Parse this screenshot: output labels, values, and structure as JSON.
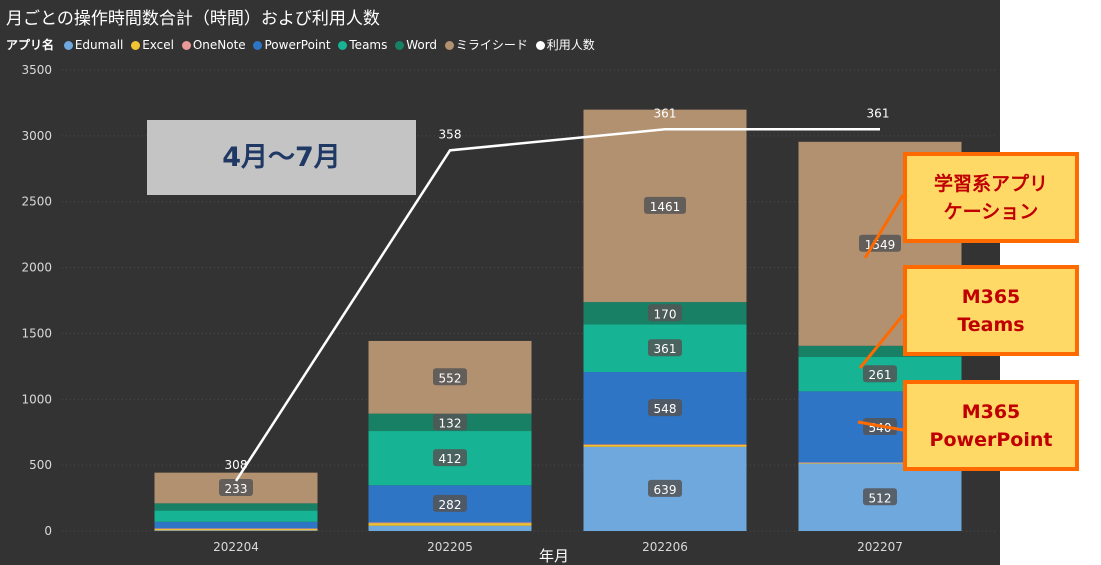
{
  "title": "月ごとの操作時間数合計（時間）および利用人数",
  "legend": {
    "title": "アプリ名",
    "items": [
      {
        "label": "Edumall",
        "color": "#6fa8dc"
      },
      {
        "label": "Excel",
        "color": "#f1c232"
      },
      {
        "label": "OneNote",
        "color": "#ea9999"
      },
      {
        "label": "PowerPoint",
        "color": "#2f75c6"
      },
      {
        "label": "Teams",
        "color": "#16b394"
      },
      {
        "label": "Word",
        "color": "#178065"
      },
      {
        "label": "ミライシード",
        "color": "#b29170"
      },
      {
        "label": "利用人数",
        "color": "#ffffff"
      }
    ]
  },
  "callouts": {
    "period": "4月～7月",
    "learning": "学習系アプリ\nケーション",
    "teams": "M365\nTeams",
    "powerpoint": "M365\nPowerPoint"
  },
  "chart_data": {
    "type": "bar",
    "stacked": true,
    "categories": [
      "202204",
      "202205",
      "202206",
      "202207"
    ],
    "xlabel": "年月",
    "ylabel": "",
    "ylim": [
      0,
      3500
    ],
    "yticks": [
      0,
      500,
      1000,
      1500,
      2000,
      2500,
      3000,
      3500
    ],
    "series": [
      {
        "name": "Edumall",
        "color": "#6fa8dc",
        "values": [
          5,
          40,
          639,
          512
        ],
        "labels": [
          null,
          null,
          "639",
          "512"
        ]
      },
      {
        "name": "Excel",
        "color": "#f1c232",
        "values": [
          10,
          20,
          15,
          5
        ],
        "labels": [
          null,
          null,
          null,
          null
        ]
      },
      {
        "name": "OneNote",
        "color": "#ea9999",
        "values": [
          5,
          5,
          5,
          3
        ],
        "labels": [
          null,
          null,
          null,
          null
        ]
      },
      {
        "name": "PowerPoint",
        "color": "#2f75c6",
        "values": [
          50,
          282,
          548,
          540
        ],
        "labels": [
          null,
          "282",
          "548",
          "540"
        ]
      },
      {
        "name": "Teams",
        "color": "#16b394",
        "values": [
          85,
          412,
          361,
          261
        ],
        "labels": [
          null,
          "412",
          "361",
          "261"
        ]
      },
      {
        "name": "Word",
        "color": "#178065",
        "values": [
          55,
          132,
          170,
          85
        ],
        "labels": [
          null,
          "132",
          "170",
          null
        ]
      },
      {
        "name": "ミライシード",
        "color": "#b29170",
        "values": [
          233,
          552,
          1461,
          1549
        ],
        "labels": [
          "233",
          "552",
          "1461",
          "1549"
        ]
      }
    ],
    "line": {
      "name": "利用人数",
      "color": "#ffffff",
      "values": [
        308,
        358,
        361,
        361
      ],
      "plot_y": [
        380,
        2890,
        3050,
        3050
      ]
    }
  }
}
